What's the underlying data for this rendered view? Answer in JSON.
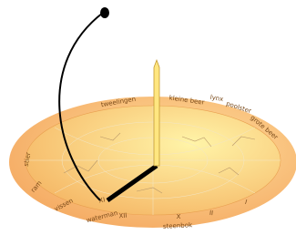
{
  "rim_labels": [
    "kleine beer",
    "lynx",
    "tweelingen",
    "poolster",
    "grote beer",
    "waterman",
    "steenbok",
    "vissen",
    "ram",
    "stier",
    "XI",
    "XII",
    "X",
    "II",
    "I"
  ]
}
